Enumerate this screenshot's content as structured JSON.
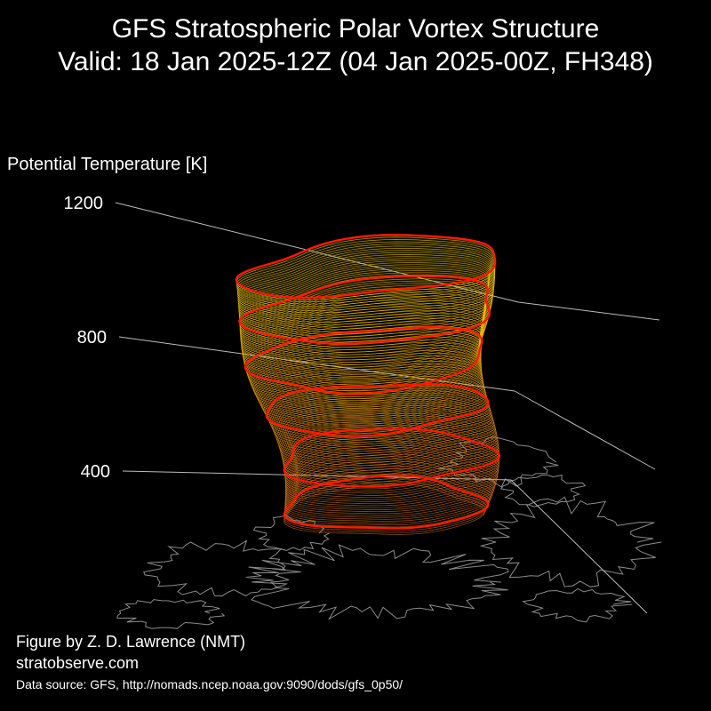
{
  "figure": {
    "title_line1": "GFS Stratospheric Polar Vortex Structure",
    "title_line2": "Valid: 18 Jan 2025-12Z  (04 Jan 2025-00Z, FH348)",
    "credit_line1": "Figure by Z. D. Lawrence (NMT)",
    "credit_line2": "stratobserve.com",
    "data_source": "Data source: GFS, http://nomads.ncep.noaa.gov:9090/dods/gfs_0p50/"
  },
  "chart_data": {
    "type": "3d-isosurface",
    "zlabel": "Potential Temperature [K]",
    "z_ticks": [
      400,
      800,
      1200
    ],
    "colors": {
      "background": "#000000",
      "axis_lines": "#bbbbbb",
      "coastlines": "#8a8a8a",
      "highlight_contours": "#ff1a00",
      "low_levels": "#d2691e",
      "high_levels": "#ffd700"
    }
  }
}
